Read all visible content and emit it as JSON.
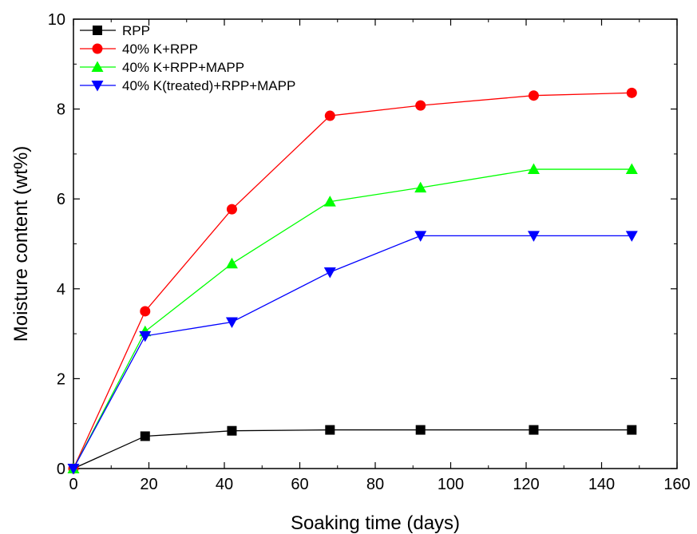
{
  "chart_data": {
    "type": "line",
    "xlabel": "Soaking time (days)",
    "ylabel": "Moisture content (wt%)",
    "xlim": [
      0,
      160
    ],
    "ylim": [
      0,
      10
    ],
    "x_ticks": [
      0,
      20,
      40,
      60,
      80,
      100,
      120,
      140,
      160
    ],
    "y_ticks": [
      0,
      2,
      4,
      6,
      8,
      10
    ],
    "grid": false,
    "legend_position": "top-left",
    "x": [
      0,
      19,
      42,
      68,
      92,
      122,
      148
    ],
    "series": [
      {
        "name": "RPP",
        "color": "#000000",
        "marker": "square",
        "values": [
          0,
          0.72,
          0.84,
          0.86,
          0.86,
          0.86,
          0.86
        ]
      },
      {
        "name": "40% K+RPP",
        "color": "#ff0000",
        "marker": "circle",
        "values": [
          0,
          3.5,
          5.77,
          7.85,
          8.08,
          8.3,
          8.36
        ]
      },
      {
        "name": "40% K+RPP+MAPP",
        "color": "#00ff00",
        "marker": "triangle-up",
        "values": [
          0,
          3.05,
          4.56,
          5.94,
          6.25,
          6.66,
          6.66
        ]
      },
      {
        "name": "40% K(treated)+RPP+MAPP",
        "color": "#0000ff",
        "marker": "triangle-down",
        "values": [
          0,
          2.95,
          3.26,
          4.37,
          5.18,
          5.18,
          5.18
        ]
      }
    ]
  }
}
